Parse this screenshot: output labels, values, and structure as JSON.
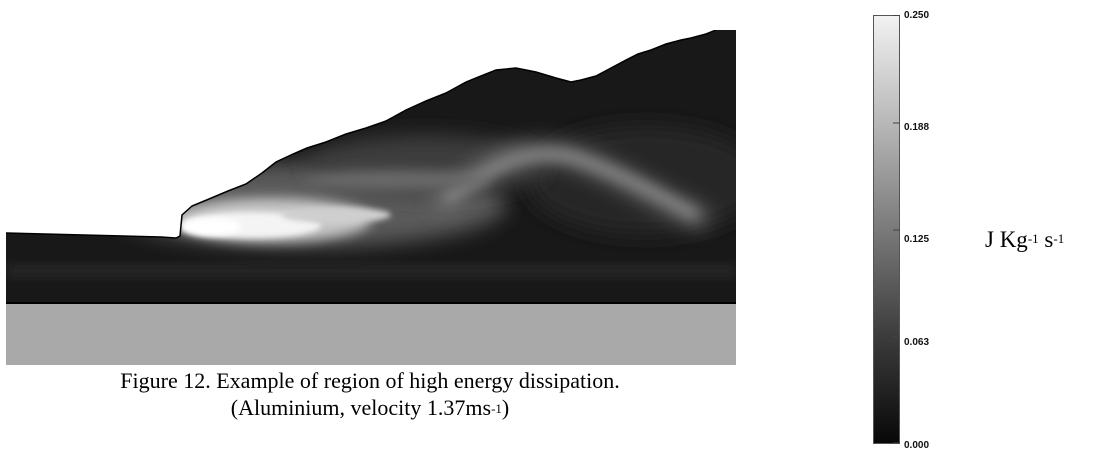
{
  "figure": {
    "caption_line1": "Figure 12. Example of region of high energy dissipation.",
    "caption_line2_prefix": "(Aluminium, velocity 1.37ms",
    "caption_line2_sup": "-1",
    "caption_line2_suffix": ")"
  },
  "colorbar": {
    "ticks": [
      "0.250",
      "0.188",
      "0.125",
      "0.063",
      "0.000"
    ],
    "min": 0.0,
    "max": 0.25,
    "colormap": "grayscale (black = low, white = high)",
    "unit": {
      "part1": "J Kg",
      "sup1": "-1",
      "part2": " s",
      "sup2": "-1"
    }
  },
  "colors": {
    "background": "#ffffff",
    "material_dark": "#181818",
    "substrate": "#a9a9a9",
    "high_dissipation": "#f4f4f4"
  }
}
